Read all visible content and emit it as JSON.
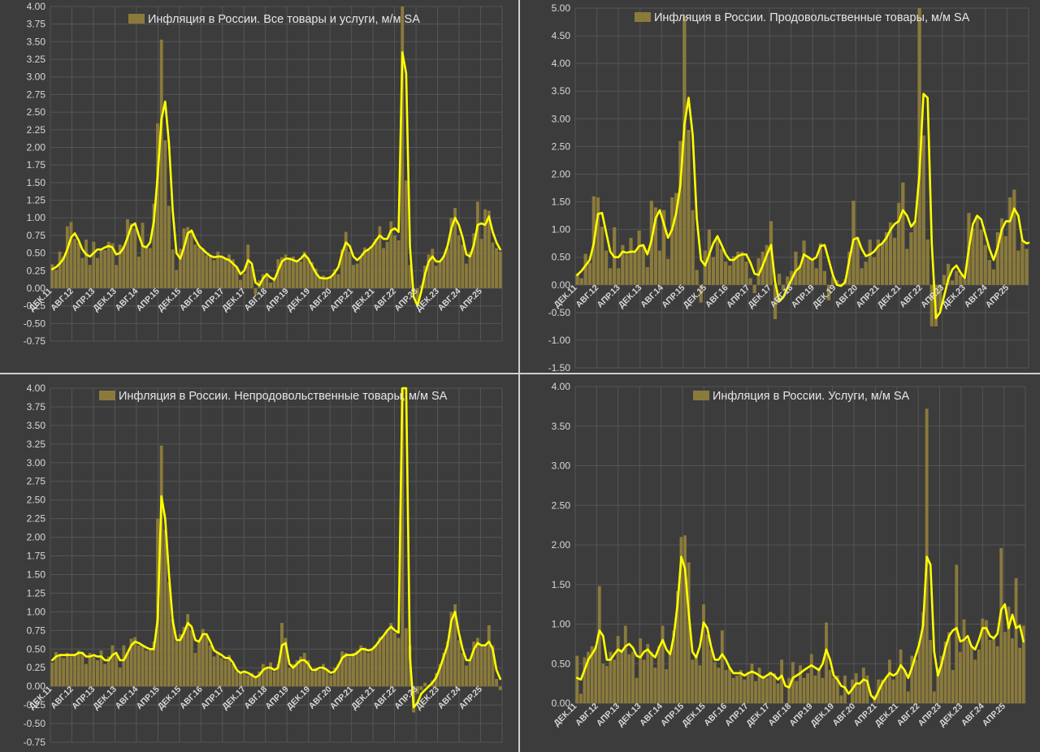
{
  "colors": {
    "background": "#3c3c3c",
    "bar": "#8a7a3c",
    "line": "#ffff00",
    "grid": "#555555",
    "text": "#d8d8d8"
  },
  "chart_data": [
    {
      "type": "bar",
      "title": "Инфляция в России. Все товары и услуги, м/м SA",
      "ylim": [
        -0.75,
        4.0
      ],
      "ystep": 0.25,
      "tick_labels": [
        "ДЕК.11",
        "АВГ.12",
        "АПР.13",
        "ДЕК.13",
        "АВГ.14",
        "АПР.15",
        "ДЕК.15",
        "АВГ.16",
        "АПР.17",
        "ДЕК.17",
        "АВГ.18",
        "АПР.19",
        "ДЕК.19",
        "АВГ.20",
        "АПР.21",
        "ДЕК.21",
        "АВГ.22",
        "АПР.23",
        "ДЕК.23",
        "АВГ.24",
        "АПР.25"
      ],
      "bars": [
        0.34,
        0.26,
        0.52,
        0.45,
        0.88,
        0.94,
        0.7,
        0.65,
        0.43,
        0.69,
        0.33,
        0.66,
        0.43,
        0.55,
        0.54,
        0.66,
        0.64,
        0.33,
        0.62,
        0.6,
        0.98,
        0.92,
        0.85,
        0.45,
        0.93,
        0.6,
        0.57,
        1.2,
        2.34,
        3.53,
        2.1,
        1.17,
        0.55,
        0.26,
        0.56,
        0.85,
        0.87,
        0.82,
        0.62,
        0.58,
        0.57,
        0.47,
        0.47,
        0.4,
        0.52,
        0.45,
        0.41,
        0.48,
        0.41,
        0.3,
        0.12,
        0.21,
        0.62,
        0.31,
        -0.1,
        0.11,
        0.2,
        0.22,
        0.08,
        0.15,
        0.41,
        0.44,
        0.48,
        0.42,
        0.45,
        0.4,
        0.38,
        0.52,
        0.43,
        0.37,
        0.28,
        0.17,
        0.18,
        0.14,
        0.15,
        0.27,
        0.2,
        0.55,
        0.8,
        0.52,
        0.33,
        0.35,
        0.45,
        0.58,
        0.56,
        0.6,
        0.7,
        0.88,
        0.57,
        0.66,
        0.95,
        0.75,
        0.68,
        4.0,
        1.53,
        0.33,
        -0.04,
        -0.22,
        0.04,
        0.32,
        0.48,
        0.56,
        0.32,
        0.38,
        0.46,
        0.57,
        1.0,
        1.14,
        0.75,
        0.62,
        0.35,
        0.52,
        0.78,
        1.23,
        0.7,
        1.12,
        1.1,
        0.65,
        0.57,
        0.52
      ],
      "smooth": [
        0.27,
        0.3,
        0.35,
        0.42,
        0.55,
        0.72,
        0.78,
        0.68,
        0.55,
        0.48,
        0.45,
        0.5,
        0.55,
        0.55,
        0.58,
        0.6,
        0.58,
        0.48,
        0.5,
        0.58,
        0.72,
        0.88,
        0.92,
        0.75,
        0.6,
        0.58,
        0.65,
        0.95,
        1.6,
        2.4,
        2.65,
        2.05,
        1.1,
        0.5,
        0.42,
        0.58,
        0.78,
        0.82,
        0.7,
        0.6,
        0.55,
        0.5,
        0.46,
        0.44,
        0.45,
        0.45,
        0.42,
        0.4,
        0.35,
        0.3,
        0.2,
        0.25,
        0.4,
        0.35,
        0.08,
        0.04,
        0.14,
        0.2,
        0.15,
        0.12,
        0.25,
        0.38,
        0.42,
        0.42,
        0.4,
        0.38,
        0.42,
        0.48,
        0.42,
        0.32,
        0.22,
        0.15,
        0.14,
        0.14,
        0.16,
        0.22,
        0.3,
        0.5,
        0.65,
        0.6,
        0.45,
        0.4,
        0.45,
        0.52,
        0.55,
        0.6,
        0.68,
        0.75,
        0.7,
        0.7,
        0.82,
        0.85,
        0.8,
        3.35,
        3.05,
        0.6,
        -0.12,
        -0.25,
        -0.05,
        0.2,
        0.38,
        0.45,
        0.38,
        0.38,
        0.45,
        0.6,
        0.85,
        1.0,
        0.9,
        0.72,
        0.48,
        0.45,
        0.62,
        0.9,
        0.92,
        0.9,
        1.02,
        0.8,
        0.65,
        0.55
      ]
    },
    {
      "type": "bar",
      "title": "Инфляция в России. Продовольственные товары, м/м SA",
      "ylim": [
        -1.5,
        5.0
      ],
      "ystep": 0.5,
      "tick_labels": [
        "ДЕК.11",
        "АВГ.12",
        "АПР.13",
        "ДЕК.13",
        "АВГ.14",
        "АПР.15",
        "ДЕК.15",
        "АВГ.16",
        "АПР.17",
        "ДЕК.17",
        "АВГ.18",
        "АПР.19",
        "ДЕК.19",
        "АВГ.20",
        "АПР.21",
        "ДЕК.21",
        "АВГ.22",
        "АПР.23",
        "ДЕК.23",
        "АВГ.24",
        "АПР.25"
      ],
      "bars": [
        0.2,
        0.12,
        0.56,
        0.4,
        1.6,
        1.58,
        1.05,
        0.62,
        0.3,
        1.04,
        0.3,
        0.72,
        0.55,
        0.85,
        0.6,
        0.98,
        0.7,
        0.32,
        1.52,
        1.4,
        0.62,
        1.35,
        0.47,
        1.58,
        1.66,
        2.6,
        4.85,
        2.8,
        1.35,
        0.27,
        -0.32,
        0.62,
        1.0,
        0.5,
        0.87,
        0.65,
        0.42,
        0.35,
        0.52,
        0.6,
        0.6,
        0.42,
        0.12,
        -0.15,
        0.48,
        0.6,
        0.72,
        1.15,
        -0.62,
        0.2,
        -0.1,
        0.15,
        0.25,
        0.6,
        0.35,
        0.8,
        0.52,
        0.45,
        0.3,
        0.75,
        0.25,
        -0.28,
        0.15,
        0.08,
        0.02,
        0.1,
        0.6,
        1.52,
        0.85,
        0.3,
        0.42,
        0.82,
        0.5,
        0.82,
        0.75,
        0.95,
        1.13,
        0.85,
        1.48,
        1.85,
        0.65,
        0.95,
        1.15,
        5.0,
        2.7,
        0.82,
        -0.75,
        -0.75,
        -0.45,
        0.18,
        0.38,
        0.08,
        0.25,
        0.18,
        0.1,
        1.3,
        1.02,
        1.24,
        1.0,
        0.72,
        0.45,
        0.28,
        0.95,
        1.2,
        0.88,
        1.58,
        1.72,
        0.62,
        0.8,
        0.65
      ],
      "smooth": [
        0.18,
        0.25,
        0.35,
        0.45,
        0.75,
        1.28,
        1.3,
        0.95,
        0.6,
        0.5,
        0.5,
        0.6,
        0.58,
        0.6,
        0.6,
        0.7,
        0.72,
        0.55,
        0.8,
        1.2,
        1.35,
        1.1,
        0.85,
        1.0,
        1.3,
        1.8,
        2.9,
        3.38,
        2.7,
        1.2,
        0.45,
        0.35,
        0.55,
        0.75,
        0.88,
        0.72,
        0.55,
        0.45,
        0.45,
        0.52,
        0.55,
        0.55,
        0.4,
        0.2,
        0.18,
        0.35,
        0.55,
        0.72,
        0.05,
        -0.3,
        -0.22,
        -0.05,
        0.1,
        0.25,
        0.32,
        0.55,
        0.5,
        0.45,
        0.5,
        0.7,
        0.72,
        0.45,
        0.18,
        0.0,
        -0.02,
        0.05,
        0.45,
        0.82,
        0.85,
        0.65,
        0.52,
        0.55,
        0.6,
        0.7,
        0.75,
        0.85,
        1.0,
        1.1,
        1.15,
        1.35,
        1.25,
        1.05,
        1.15,
        2.0,
        3.45,
        3.38,
        0.75,
        -0.6,
        -0.5,
        -0.2,
        0.1,
        0.28,
        0.35,
        0.22,
        0.12,
        0.65,
        1.1,
        1.25,
        1.18,
        0.92,
        0.65,
        0.45,
        0.68,
        1.0,
        1.15,
        1.15,
        1.38,
        1.25,
        0.8,
        0.75
      ],
      "line_end_tail": [
        0.76
      ]
    },
    {
      "type": "bar",
      "title": "Инфляция в России. Непродовольственные товары, м/м SA",
      "ylim": [
        -0.75,
        4.0
      ],
      "ystep": 0.25,
      "tick_labels": [
        "ДЕК.11",
        "АВГ.12",
        "АПР.13",
        "ДЕК.13",
        "АВГ.14",
        "АПР.15",
        "ДЕК.15",
        "АВГ.16",
        "АПР.17",
        "ДЕК.17",
        "АВГ.18",
        "АПР.19",
        "ДЕК.19",
        "АВГ.20",
        "АПР.21",
        "ДЕК.21",
        "АВГ.22",
        "АПР.23",
        "ДЕК.23",
        "АВГ.24",
        "АПР.25"
      ],
      "bars": [
        0.32,
        0.46,
        0.42,
        0.38,
        0.45,
        0.4,
        0.42,
        0.48,
        0.45,
        0.3,
        0.45,
        0.42,
        0.35,
        0.48,
        0.3,
        0.4,
        0.55,
        0.42,
        0.25,
        0.55,
        0.45,
        0.64,
        0.66,
        0.55,
        0.55,
        0.48,
        0.5,
        0.6,
        2.25,
        3.23,
        2.1,
        1.4,
        0.9,
        0.6,
        0.7,
        0.8,
        0.97,
        0.75,
        0.45,
        0.62,
        0.77,
        0.68,
        0.55,
        0.4,
        0.45,
        0.38,
        0.35,
        0.42,
        0.3,
        0.2,
        0.18,
        0.2,
        0.15,
        0.18,
        0.12,
        0.2,
        0.3,
        0.25,
        0.32,
        0.2,
        0.3,
        0.85,
        0.65,
        0.25,
        0.3,
        0.35,
        0.4,
        0.45,
        0.35,
        0.2,
        0.25,
        0.22,
        0.3,
        0.22,
        0.15,
        0.25,
        0.3,
        0.47,
        0.45,
        0.4,
        0.45,
        0.48,
        0.55,
        0.52,
        0.45,
        0.5,
        0.55,
        0.66,
        0.68,
        0.75,
        0.85,
        0.72,
        0.65,
        4.0,
        0.78,
        0.55,
        -0.35,
        -0.1,
        -0.05,
        0.05,
        0.02,
        0.08,
        0.18,
        0.3,
        0.45,
        0.6,
        1.0,
        1.1,
        0.62,
        0.45,
        0.28,
        0.35,
        0.6,
        0.65,
        0.55,
        0.55,
        0.82,
        0.55,
        0.1,
        -0.05
      ],
      "smooth": [
        0.35,
        0.4,
        0.42,
        0.42,
        0.42,
        0.42,
        0.42,
        0.45,
        0.45,
        0.4,
        0.4,
        0.42,
        0.4,
        0.4,
        0.35,
        0.35,
        0.42,
        0.45,
        0.35,
        0.35,
        0.45,
        0.55,
        0.6,
        0.58,
        0.55,
        0.52,
        0.5,
        0.5,
        0.9,
        2.55,
        2.25,
        1.5,
        0.88,
        0.62,
        0.62,
        0.72,
        0.85,
        0.8,
        0.62,
        0.6,
        0.7,
        0.7,
        0.6,
        0.48,
        0.45,
        0.42,
        0.38,
        0.38,
        0.32,
        0.22,
        0.18,
        0.2,
        0.18,
        0.15,
        0.12,
        0.15,
        0.22,
        0.25,
        0.25,
        0.22,
        0.25,
        0.55,
        0.58,
        0.3,
        0.25,
        0.3,
        0.35,
        0.35,
        0.3,
        0.22,
        0.22,
        0.25,
        0.25,
        0.22,
        0.18,
        0.2,
        0.28,
        0.38,
        0.42,
        0.42,
        0.42,
        0.45,
        0.5,
        0.5,
        0.48,
        0.5,
        0.55,
        0.62,
        0.68,
        0.75,
        0.8,
        0.75,
        0.72,
        4.0,
        4.0,
        0.4,
        -0.28,
        -0.22,
        -0.1,
        -0.05,
        0.0,
        0.05,
        0.12,
        0.25,
        0.4,
        0.55,
        0.88,
        1.0,
        0.72,
        0.5,
        0.35,
        0.35,
        0.5,
        0.58,
        0.55,
        0.55,
        0.6,
        0.5,
        0.22,
        0.1
      ]
    },
    {
      "type": "bar",
      "title": "Инфляция в России. Услуги, м/м SA",
      "ylim": [
        0.0,
        4.0
      ],
      "ystep": 0.5,
      "tick_labels": [
        "ДЕК.11",
        "АВГ.12",
        "АПР.13",
        "ДЕК.13",
        "АВГ.14",
        "АПР.15",
        "ДЕК.15",
        "АВГ.16",
        "АПР.17",
        "ДЕК.17",
        "АВГ.18",
        "АПР.19",
        "ДЕК.19",
        "АВГ.20",
        "АПР.21",
        "ДЕК.21",
        "АВГ.22",
        "АПР.23",
        "ДЕК.23",
        "АВГ.24",
        "АПР.25"
      ],
      "bars": [
        0.6,
        0.12,
        0.58,
        0.65,
        0.72,
        0.72,
        1.48,
        0.5,
        0.47,
        0.65,
        0.55,
        0.85,
        0.68,
        0.98,
        0.62,
        0.65,
        0.32,
        0.82,
        0.55,
        0.75,
        0.65,
        0.45,
        0.72,
        0.98,
        0.43,
        0.65,
        0.92,
        1.42,
        2.1,
        2.12,
        1.78,
        0.55,
        0.6,
        0.48,
        1.25,
        0.87,
        0.68,
        0.52,
        0.45,
        0.92,
        0.42,
        0.45,
        0.32,
        0.35,
        0.42,
        0.3,
        0.38,
        0.5,
        0.28,
        0.45,
        0.35,
        0.32,
        0.4,
        0.38,
        0.25,
        0.55,
        0.0,
        0.32,
        0.52,
        0.28,
        0.48,
        0.32,
        0.38,
        0.62,
        0.35,
        0.45,
        0.32,
        1.02,
        0.42,
        0.32,
        0.35,
        0.1,
        0.35,
        -0.08,
        0.3,
        0.38,
        0.25,
        0.45,
        0.35,
        -0.15,
        0.1,
        0.3,
        0.3,
        0.32,
        0.55,
        0.3,
        0.4,
        0.68,
        0.42,
        0.15,
        0.6,
        0.55,
        0.78,
        1.15,
        3.72,
        0.8,
        0.15,
        0.45,
        0.6,
        0.78,
        0.9,
        0.42,
        1.75,
        0.65,
        1.06,
        0.8,
        0.72,
        0.55,
        0.68,
        1.07,
        1.05,
        0.8,
        0.85,
        0.72,
        1.96,
        0.9,
        1.22,
        0.82,
        1.58,
        0.7,
        0.98
      ],
      "smooth": [
        0.32,
        0.3,
        0.42,
        0.55,
        0.62,
        0.7,
        0.92,
        0.85,
        0.55,
        0.55,
        0.62,
        0.68,
        0.65,
        0.72,
        0.75,
        0.7,
        0.6,
        0.58,
        0.65,
        0.68,
        0.62,
        0.58,
        0.7,
        0.8,
        0.68,
        0.62,
        0.85,
        1.25,
        1.85,
        1.7,
        1.15,
        0.65,
        0.58,
        0.72,
        1.02,
        0.95,
        0.72,
        0.55,
        0.55,
        0.62,
        0.55,
        0.45,
        0.38,
        0.38,
        0.38,
        0.35,
        0.38,
        0.4,
        0.38,
        0.35,
        0.32,
        0.35,
        0.38,
        0.35,
        0.3,
        0.35,
        0.22,
        0.2,
        0.32,
        0.35,
        0.38,
        0.42,
        0.45,
        0.48,
        0.45,
        0.42,
        0.5,
        0.68,
        0.55,
        0.35,
        0.3,
        0.22,
        0.2,
        0.12,
        0.18,
        0.25,
        0.25,
        0.3,
        0.28,
        0.1,
        0.05,
        0.15,
        0.25,
        0.32,
        0.38,
        0.35,
        0.38,
        0.48,
        0.42,
        0.32,
        0.45,
        0.6,
        0.75,
        0.98,
        1.85,
        1.75,
        0.65,
        0.35,
        0.5,
        0.7,
        0.85,
        0.92,
        0.95,
        0.78,
        0.8,
        0.85,
        0.72,
        0.68,
        0.8,
        0.95,
        0.95,
        0.85,
        0.82,
        0.88,
        1.18,
        1.25,
        0.95,
        1.12,
        0.95,
        0.98,
        0.78
      ]
    }
  ]
}
